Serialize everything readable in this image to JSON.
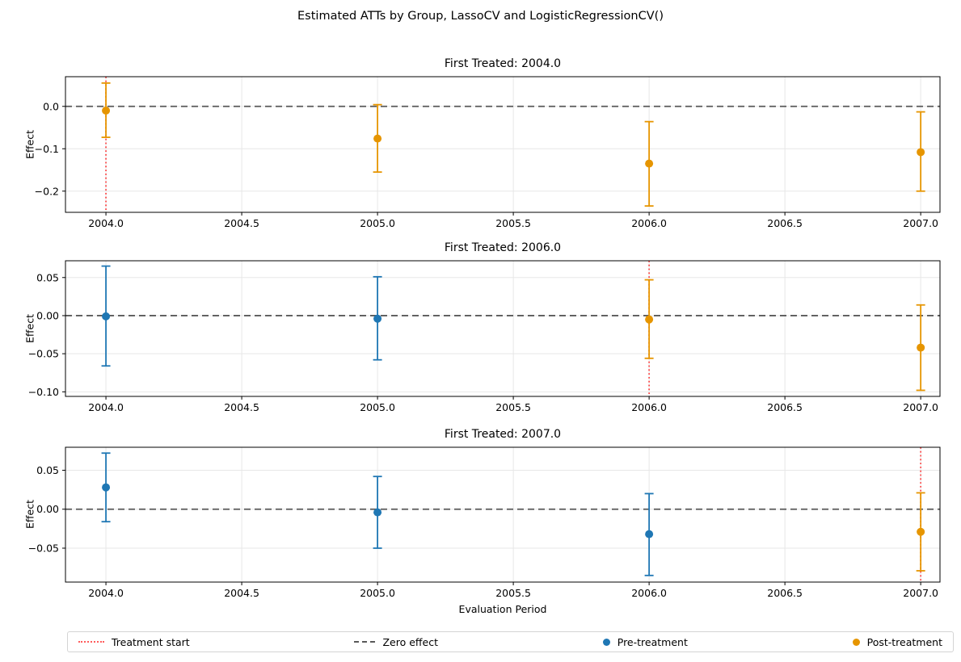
{
  "figure": {
    "title": "Estimated ATTs by Group, LassoCV and LogisticRegressionCV()",
    "xlabel": "Evaluation Period",
    "ylabel": "Effect"
  },
  "colors": {
    "pre": "#1f77b4",
    "post": "#e69500",
    "treatment": "#ff1f1f",
    "zero": "#595959",
    "grid": "#e7e7e7",
    "spine": "#000000",
    "legend_border": "#d4d4d4"
  },
  "legend": {
    "items": [
      {
        "label": "Treatment start",
        "type": "dotted-line",
        "color": "#ff4040"
      },
      {
        "label": "Zero effect",
        "type": "dashed-line",
        "color": "#595959"
      },
      {
        "label": "Pre-treatment",
        "type": "marker",
        "color": "#1f77b4"
      },
      {
        "label": "Post-treatment",
        "type": "marker",
        "color": "#e69500"
      }
    ]
  },
  "chart_data": {
    "type": "errorbar",
    "xlabel": "Evaluation Period",
    "ylabel": "Effect",
    "x": [
      2004,
      2005,
      2006,
      2007
    ],
    "xlim": [
      2003.851,
      2007.071
    ],
    "xticks": [
      2004.0,
      2004.5,
      2005.0,
      2005.5,
      2006.0,
      2006.5,
      2007.0
    ],
    "xtick_labels": [
      "2004.0",
      "2004.5",
      "2005.0",
      "2005.5",
      "2006.0",
      "2006.5",
      "2007.0"
    ],
    "grid": true,
    "legend_position": "bottom",
    "subplots": [
      {
        "title": "First Treated: 2004.0",
        "treatment_start": 2004.0,
        "ylim": [
          -0.25,
          0.07
        ],
        "yticks": [
          0.0,
          -0.1,
          -0.2
        ],
        "ytick_labels": [
          "0.0",
          "−0.1",
          "−0.2"
        ],
        "points": [
          {
            "x": 2004,
            "est": -0.01,
            "lo": -0.073,
            "hi": 0.055,
            "phase": "post"
          },
          {
            "x": 2005,
            "est": -0.076,
            "lo": -0.155,
            "hi": 0.004,
            "phase": "post"
          },
          {
            "x": 2006,
            "est": -0.135,
            "lo": -0.235,
            "hi": -0.036,
            "phase": "post"
          },
          {
            "x": 2007,
            "est": -0.108,
            "lo": -0.2,
            "hi": -0.013,
            "phase": "post"
          }
        ]
      },
      {
        "title": "First Treated: 2006.0",
        "treatment_start": 2006.0,
        "ylim": [
          -0.106,
          0.072
        ],
        "yticks": [
          0.05,
          0.0,
          -0.05,
          -0.1
        ],
        "ytick_labels": [
          "0.05",
          "0.00",
          "−0.05",
          "−0.10"
        ],
        "points": [
          {
            "x": 2004,
            "est": -0.001,
            "lo": -0.066,
            "hi": 0.065,
            "phase": "pre"
          },
          {
            "x": 2005,
            "est": -0.004,
            "lo": -0.058,
            "hi": 0.051,
            "phase": "pre"
          },
          {
            "x": 2006,
            "est": -0.005,
            "lo": -0.056,
            "hi": 0.047,
            "phase": "post"
          },
          {
            "x": 2007,
            "est": -0.042,
            "lo": -0.098,
            "hi": 0.014,
            "phase": "post"
          }
        ]
      },
      {
        "title": "First Treated: 2007.0",
        "treatment_start": 2007.0,
        "ylim": [
          -0.0935,
          0.0795
        ],
        "yticks": [
          0.05,
          0.0,
          -0.05
        ],
        "ytick_labels": [
          "0.05",
          "0.00",
          "−0.05"
        ],
        "points": [
          {
            "x": 2004,
            "est": 0.028,
            "lo": -0.016,
            "hi": 0.072,
            "phase": "pre"
          },
          {
            "x": 2005,
            "est": -0.004,
            "lo": -0.05,
            "hi": 0.042,
            "phase": "pre"
          },
          {
            "x": 2006,
            "est": -0.032,
            "lo": -0.085,
            "hi": 0.02,
            "phase": "pre"
          },
          {
            "x": 2007,
            "est": -0.029,
            "lo": -0.079,
            "hi": 0.021,
            "phase": "post"
          }
        ]
      }
    ]
  }
}
